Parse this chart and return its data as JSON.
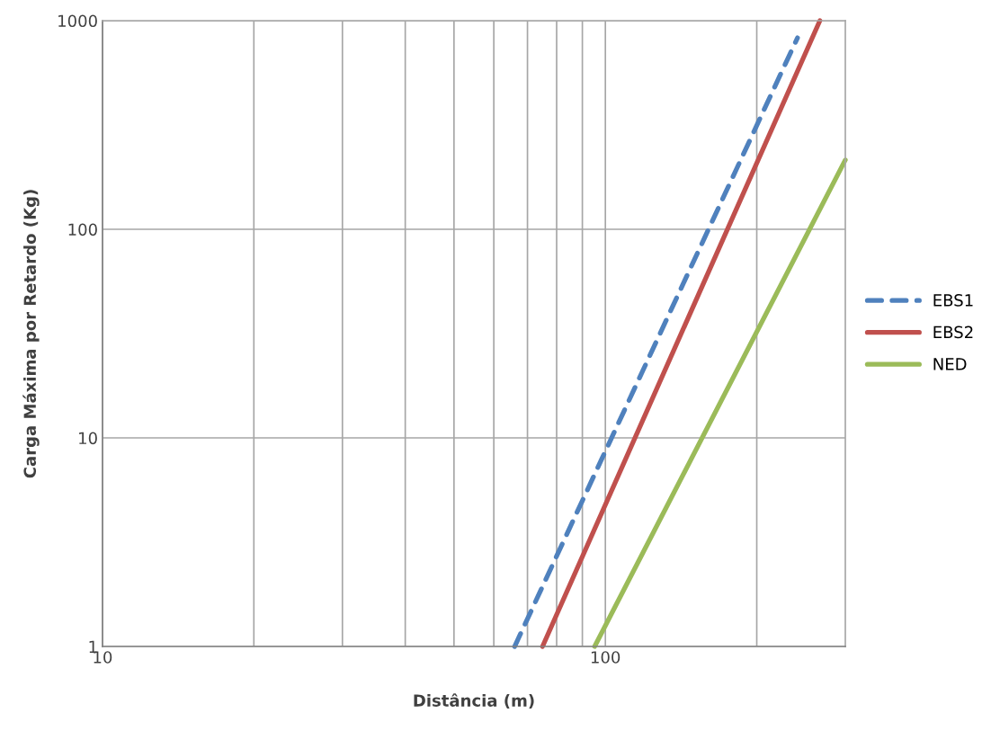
{
  "chart_data": {
    "type": "line",
    "xlabel": "Distância (m)",
    "ylabel": "Carga Máxima por Retardo (Kg)",
    "log": "xy",
    "xlim": [
      10,
      300
    ],
    "ylim": [
      1,
      1000
    ],
    "xticks": [
      10,
      {
        "value": 20,
        "label": null
      },
      {
        "value": 30,
        "label": null
      },
      {
        "value": 40,
        "label": null
      },
      {
        "value": 50,
        "label": null
      },
      {
        "value": 60,
        "label": null
      },
      {
        "value": 70,
        "label": null
      },
      {
        "value": 80,
        "label": null
      },
      {
        "value": 90,
        "label": null
      },
      100,
      {
        "value": 200,
        "label": null
      }
    ],
    "yticks": [
      1,
      10,
      100,
      1000
    ],
    "grid": true,
    "legend": "right",
    "marker": "none",
    "series": [
      {
        "name": "EBS1",
        "color": "#4f81bd",
        "line_style": "dashed",
        "x": [
          66,
          241
        ],
        "values": [
          1,
          828
        ]
      },
      {
        "name": "EBS2",
        "color": "#c0504d",
        "line_style": "solid",
        "x": [
          75,
          267
        ],
        "values": [
          1,
          1000
        ]
      },
      {
        "name": "NED",
        "color": "#9bbb59",
        "line_style": "solid",
        "x": [
          95.2,
          300
        ],
        "values": [
          1,
          215
        ]
      }
    ]
  }
}
